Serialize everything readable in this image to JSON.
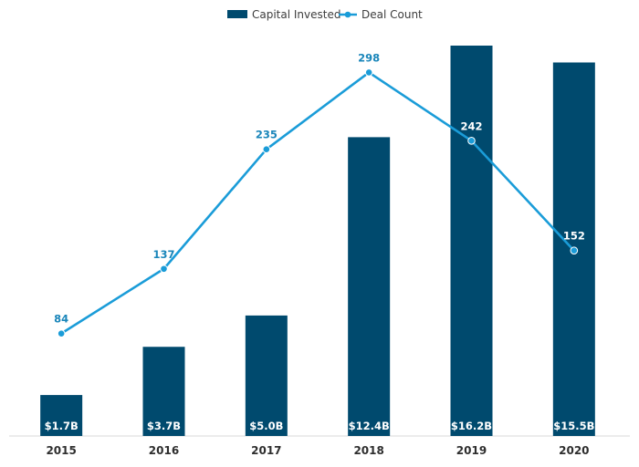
{
  "chart_data": {
    "type": "bar",
    "title": "",
    "xlabel": "",
    "ylabel": "",
    "categories": [
      "2015",
      "2016",
      "2017",
      "2018",
      "2019",
      "2020"
    ],
    "series": [
      {
        "name": "Capital Invested",
        "type": "bar",
        "axis": "left",
        "values": [
          1.7,
          3.7,
          5.0,
          12.4,
          16.2,
          15.5
        ],
        "labels": [
          "$1.7B",
          "$3.7B",
          "$5.0B",
          "$12.4B",
          "$16.2B",
          "$15.5B"
        ],
        "color": "#004a6e"
      },
      {
        "name": "Deal Count",
        "type": "line",
        "axis": "right",
        "values": [
          84,
          137,
          235,
          298,
          242,
          152
        ],
        "labels": [
          "84",
          "137",
          "235",
          "298",
          "242",
          "152"
        ],
        "color": "#1a9cd8",
        "label_colors": [
          "#1a86ba",
          "#1a86ba",
          "#1a86ba",
          "#1a86ba",
          "#ffffff",
          "#ffffff"
        ]
      }
    ],
    "left_axis_range": [
      0,
      16.2
    ],
    "right_axis_range": [
      0,
      320
    ],
    "legend": {
      "position": "top-center",
      "items": [
        "Capital Invested",
        "Deal Count"
      ]
    },
    "grid": false
  },
  "colors": {
    "baseline": "#d9d9d9",
    "label_bubble": "#1f6f96"
  }
}
